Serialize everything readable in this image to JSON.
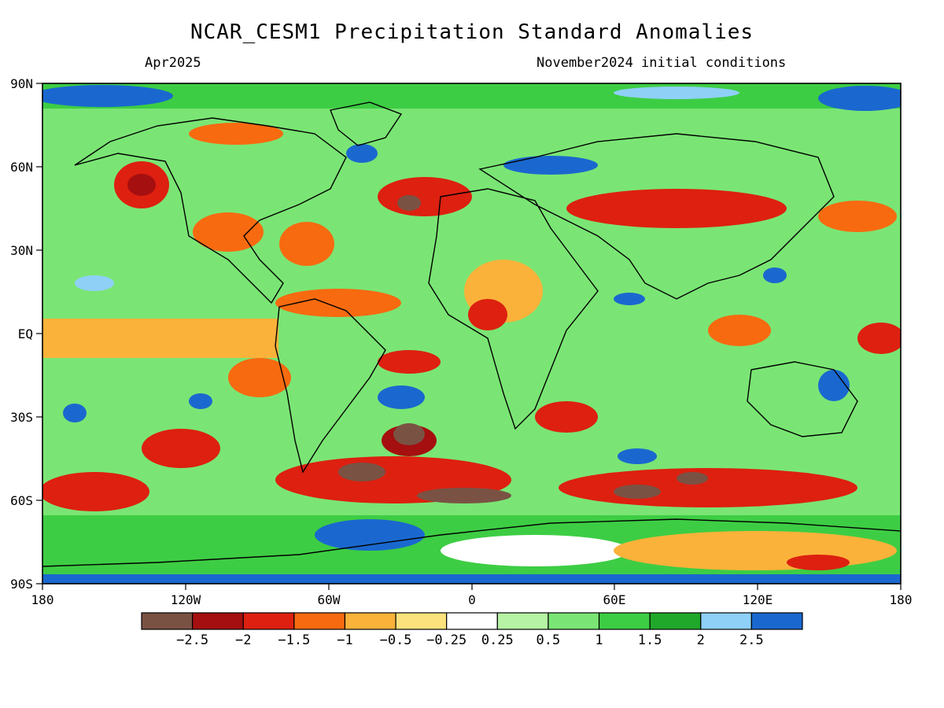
{
  "title": "NCAR_CESM1 Precipitation Standard Anomalies",
  "valid_month": "Apr2025",
  "initial_conditions": "November2024 initial conditions",
  "map": {
    "lon_ticks": [
      "180",
      "120W",
      "60W",
      "0",
      "60E",
      "120E",
      "180"
    ],
    "lat_ticks": [
      "90N",
      "60N",
      "30N",
      "EQ",
      "30S",
      "60S",
      "90S"
    ],
    "projection": "cylindrical equidistant"
  },
  "colorbar": {
    "colors": [
      "#7a5244",
      "#a50f0f",
      "#dd2010",
      "#f76a10",
      "#fab23a",
      "#fbe27c",
      "#ffffff",
      "#b6f3a4",
      "#7ae574",
      "#3dcd44",
      "#20a82a",
      "#8fd0f7",
      "#1a68cf"
    ],
    "labels": [
      "−2.5",
      "−2",
      "−1.5",
      "−1",
      "−0.5",
      "−0.25",
      "0.25",
      "0.5",
      "1",
      "1.5",
      "2",
      "2.5"
    ]
  }
}
